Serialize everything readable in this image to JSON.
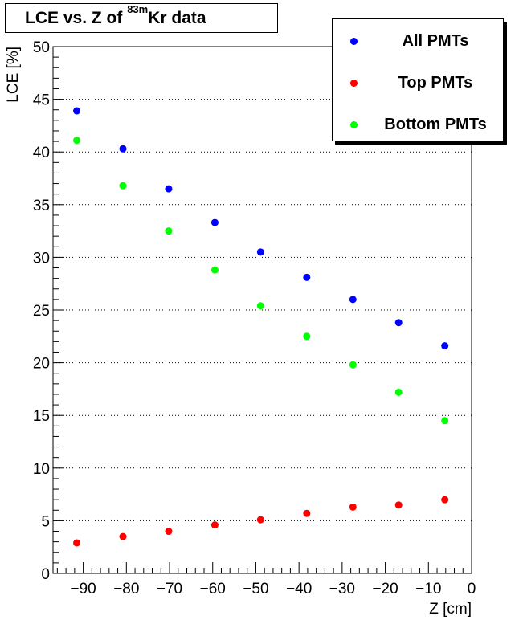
{
  "title": {
    "prefix": "LCE vs. Z of ",
    "isotope_superscript": "83m",
    "suffix": "Kr data"
  },
  "chart_data": {
    "type": "scatter",
    "xlabel": "Z [cm]",
    "ylabel": "LCE [%]",
    "xlim": [
      -97,
      0
    ],
    "ylim": [
      0,
      50
    ],
    "x_ticks": [
      -90,
      -80,
      -70,
      -60,
      -50,
      -40,
      -30,
      -20,
      -10,
      0
    ],
    "y_ticks": [
      0,
      5,
      10,
      15,
      20,
      25,
      30,
      35,
      40,
      45,
      50
    ],
    "grid": "horizontal dotted",
    "legend_position": "top-right",
    "x": [
      -91.5,
      -80.8,
      -70.2,
      -59.5,
      -48.9,
      -38.2,
      -27.5,
      -16.9,
      -6.2
    ],
    "series": [
      {
        "name": "All PMTs",
        "color": "#0000ff",
        "values": [
          43.9,
          40.3,
          36.5,
          33.3,
          30.5,
          28.1,
          26.0,
          23.8,
          21.6
        ]
      },
      {
        "name": "Top PMTs",
        "color": "#ff0000",
        "values": [
          2.9,
          3.5,
          4.0,
          4.6,
          5.1,
          5.7,
          6.3,
          6.5,
          7.0
        ]
      },
      {
        "name": "Bottom PMTs",
        "color": "#00ff00",
        "values": [
          41.1,
          36.8,
          32.5,
          28.8,
          25.4,
          22.5,
          19.8,
          17.2,
          14.5
        ]
      }
    ]
  }
}
